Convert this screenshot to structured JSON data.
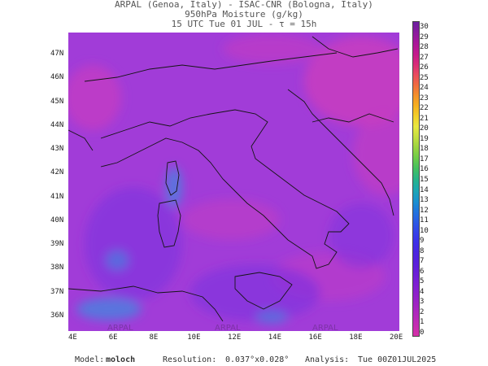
{
  "header": {
    "line1": "ARPAL (Genoa, Italy)  -  ISAC-CNR (Bologna, Italy)",
    "line2": "950hPa Moisture (g/kg)",
    "line3": "15 UTC Tue 01 JUL  -  τ = 15h"
  },
  "map": {
    "lat_labels": [
      "47N",
      "46N",
      "45N",
      "44N",
      "43N",
      "42N",
      "41N",
      "40N",
      "39N",
      "38N",
      "37N",
      "36N"
    ],
    "lon_labels": [
      "4E",
      "6E",
      "8E",
      "10E",
      "12E",
      "14E",
      "16E",
      "18E",
      "20E"
    ],
    "watermark": "ARPAL",
    "colors": {
      "water": "#7a30e0",
      "land": "#a13cd8",
      "dry": "#c83cc0",
      "moist": "#3c8ce0"
    }
  },
  "colorbar": {
    "ticks": [
      "30",
      "29",
      "28",
      "27",
      "26",
      "25",
      "24",
      "23",
      "22",
      "21",
      "20",
      "19",
      "18",
      "17",
      "16",
      "15",
      "14",
      "13",
      "12",
      "11",
      "10",
      "9",
      "8",
      "7",
      "6",
      "5",
      "4",
      "3",
      "2",
      "1",
      "0"
    ],
    "colors": [
      "#6b1fa0",
      "#8a1a9e",
      "#a8179a",
      "#c21a8e",
      "#d82a7a",
      "#e84a60",
      "#f06a40",
      "#f4902a",
      "#f5b020",
      "#f2d02a",
      "#e8e840",
      "#c4e040",
      "#9ad440",
      "#6ecc48",
      "#44c060",
      "#28b488",
      "#1ca8b0",
      "#1a94cc",
      "#2078dc",
      "#2a5ee4",
      "#3444e8",
      "#3c30e8",
      "#4a26e0",
      "#5820dc",
      "#6a1ed8",
      "#7c20d4",
      "#8e22cc",
      "#a024c4",
      "#b228bc",
      "#c42cb2",
      "#d630a8"
    ]
  },
  "footer": {
    "model_label": "Model:",
    "model_value": "moloch",
    "resolution_label": "Resolution:",
    "resolution_value": "0.037°x0.028°",
    "analysis_label": "Analysis:",
    "analysis_value": "Tue 00Z01JUL2025"
  }
}
